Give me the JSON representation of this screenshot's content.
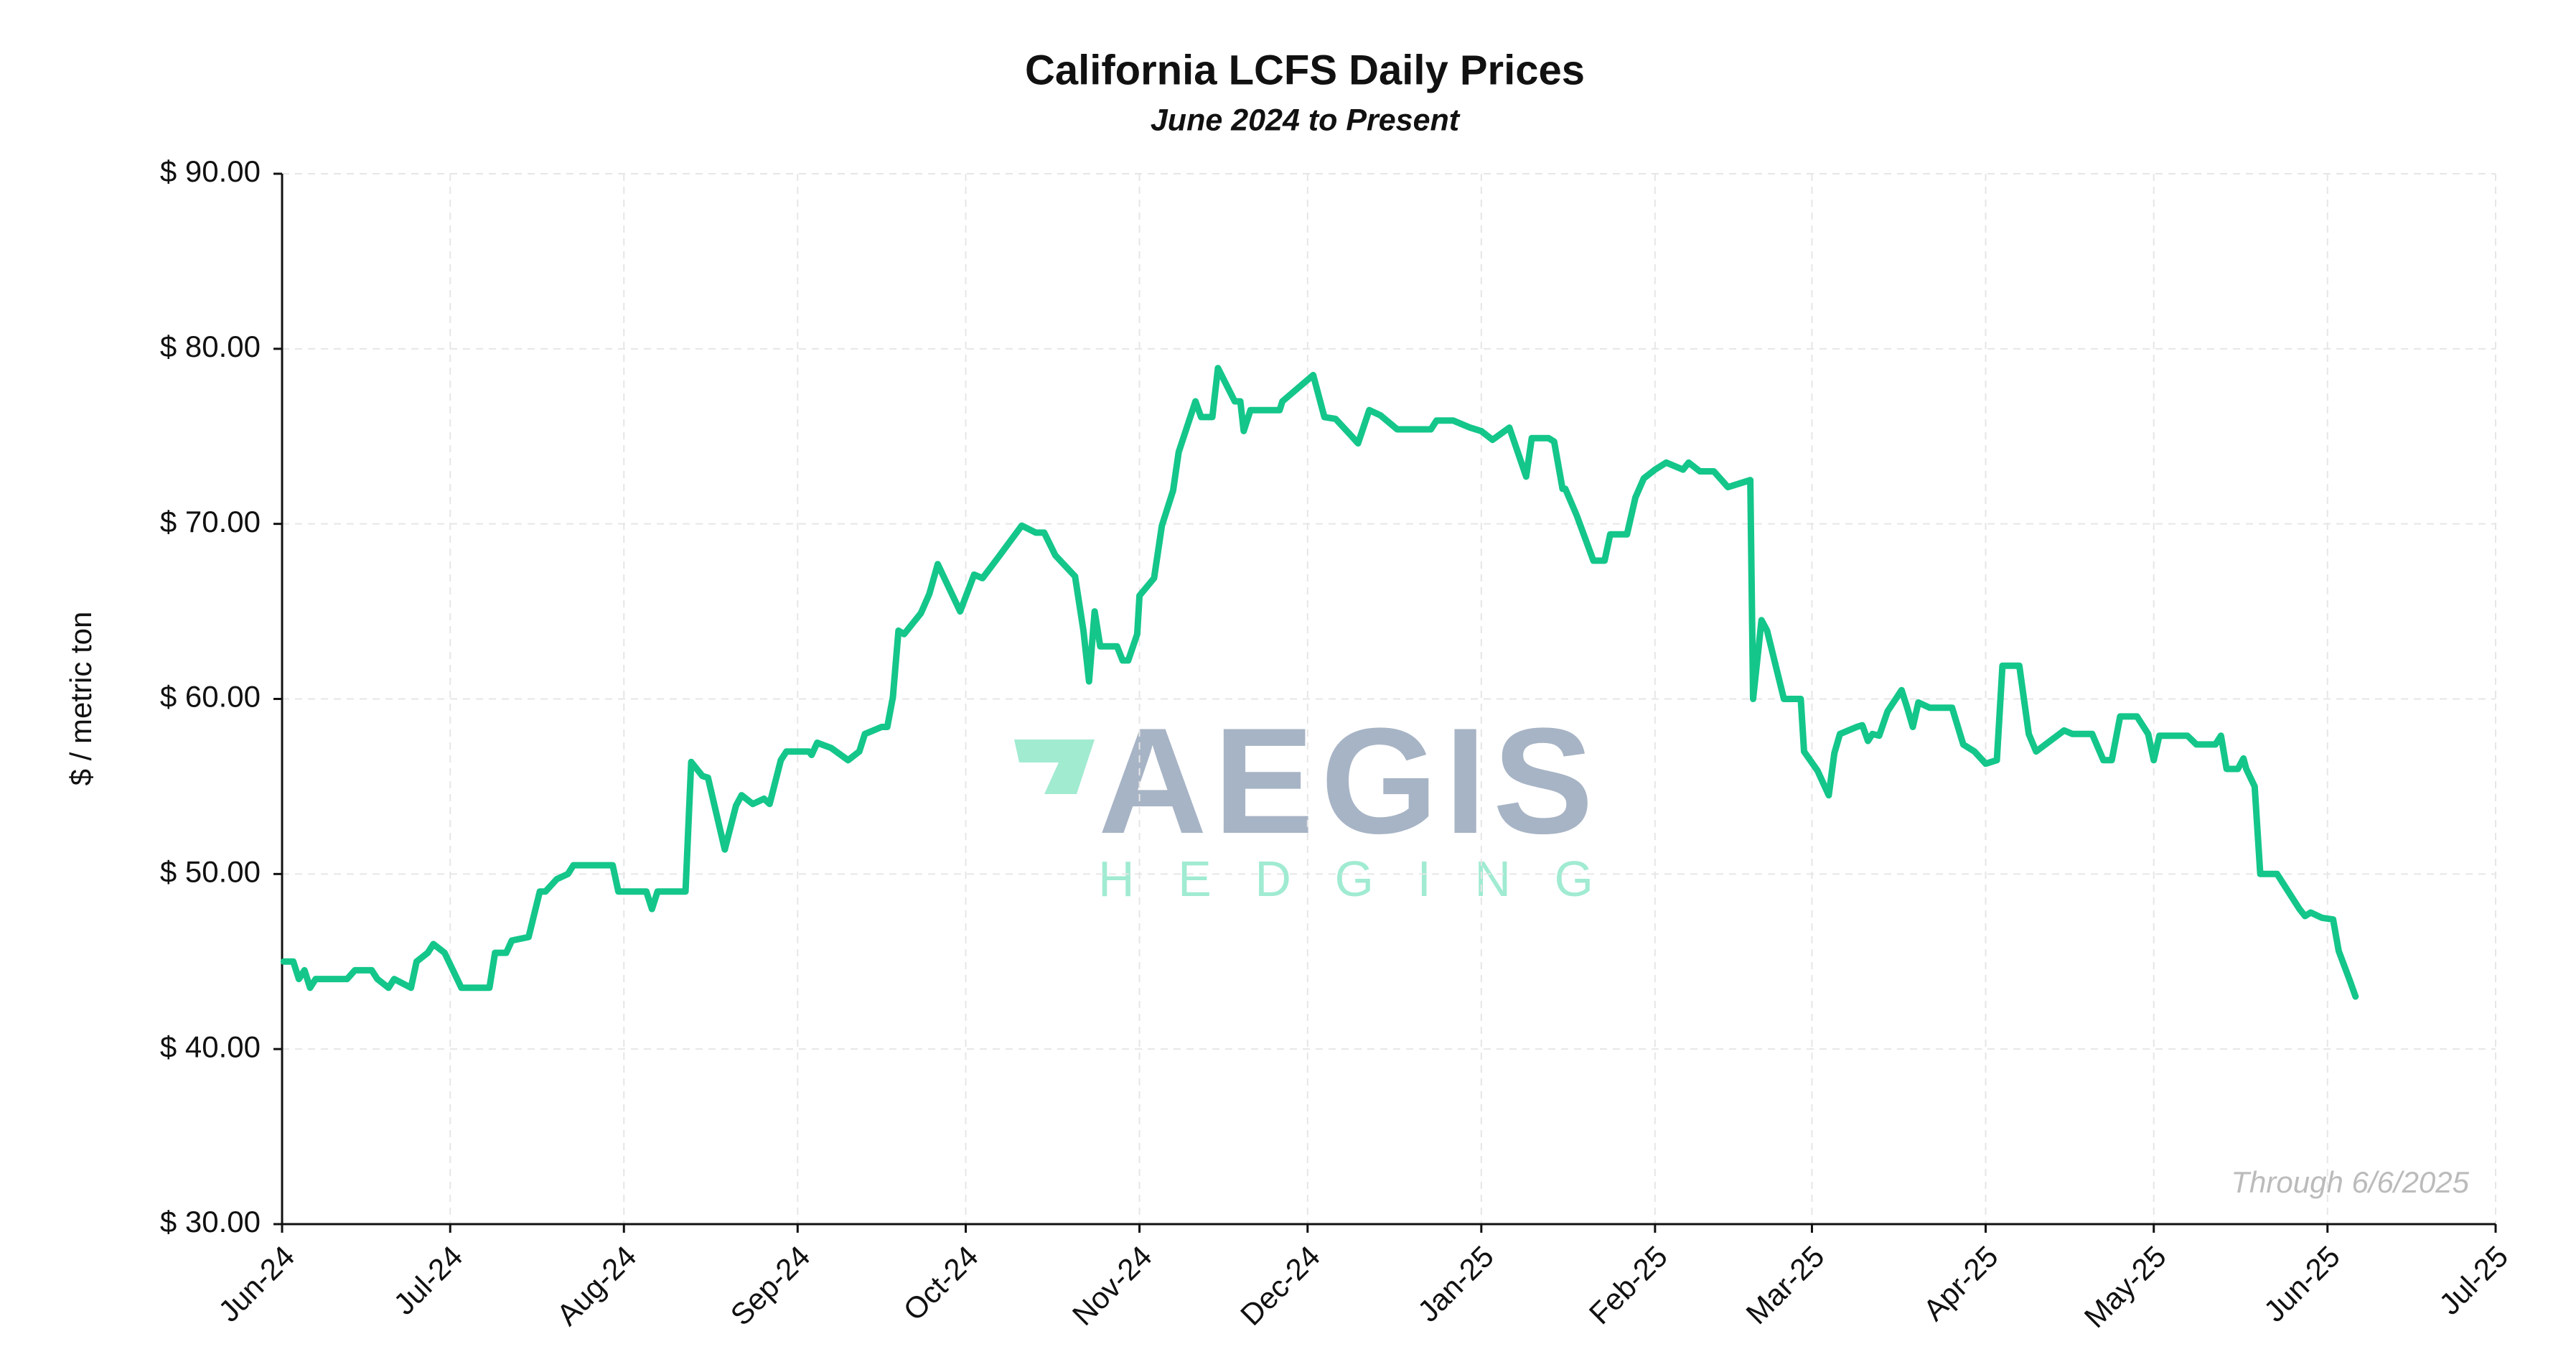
{
  "chart_data": {
    "type": "line",
    "title": "California LCFS Daily Prices",
    "subtitle": "June 2024 to Present",
    "ylabel": "$ / metric ton",
    "annotation": "Through 6/6/2025",
    "watermark": {
      "name": "AEGIS",
      "tagline": "HEDGING"
    },
    "grid": true,
    "xlim": [
      0,
      395
    ],
    "xticks": [
      {
        "value": 0,
        "label": "Jun-24"
      },
      {
        "value": 30,
        "label": "Jul-24"
      },
      {
        "value": 61,
        "label": "Aug-24"
      },
      {
        "value": 92,
        "label": "Sep-24"
      },
      {
        "value": 122,
        "label": "Oct-24"
      },
      {
        "value": 153,
        "label": "Nov-24"
      },
      {
        "value": 183,
        "label": "Dec-24"
      },
      {
        "value": 214,
        "label": "Jan-25"
      },
      {
        "value": 245,
        "label": "Feb-25"
      },
      {
        "value": 273,
        "label": "Mar-25"
      },
      {
        "value": 304,
        "label": "Apr-25"
      },
      {
        "value": 334,
        "label": "May-25"
      },
      {
        "value": 365,
        "label": "Jun-25"
      },
      {
        "value": 395,
        "label": "Jul-25"
      }
    ],
    "ylim": [
      30,
      90
    ],
    "yticks": [
      {
        "value": 30,
        "label": "$ 30.00"
      },
      {
        "value": 40,
        "label": "$ 40.00"
      },
      {
        "value": 50,
        "label": "$ 50.00"
      },
      {
        "value": 60,
        "label": "$ 60.00"
      },
      {
        "value": 70,
        "label": "$ 70.00"
      },
      {
        "value": 80,
        "label": "$ 80.00"
      },
      {
        "value": 90,
        "label": "$ 90.00"
      }
    ],
    "x": [
      0.3,
      2,
      3,
      4,
      5,
      6,
      11.6,
      13,
      16,
      17,
      19,
      20,
      23,
      24,
      26,
      27,
      29,
      32,
      37,
      38,
      40,
      41,
      44,
      46,
      47,
      49,
      51,
      52,
      59,
      60,
      65,
      66,
      67,
      72,
      73,
      75,
      76,
      79,
      81,
      82,
      84,
      86,
      87,
      89,
      90,
      94,
      94.5,
      95.5,
      98,
      101,
      103,
      104,
      107,
      108,
      109,
      110,
      111,
      114,
      115.5,
      117,
      121,
      123.5,
      125,
      127.6,
      132,
      134.5,
      136,
      138,
      141.5,
      143,
      144,
      145,
      146,
      149,
      150,
      151,
      152.6,
      153,
      155.6,
      157,
      159,
      160,
      163,
      164,
      166,
      167,
      170,
      171,
      171.6,
      172.8,
      178,
      178.5,
      184,
      186,
      188,
      190.6,
      192,
      194,
      196,
      199,
      205,
      206,
      209,
      212,
      214,
      216,
      219,
      222,
      223,
      226,
      227,
      228.5,
      229,
      231,
      234,
      236,
      237,
      240,
      241.5,
      243,
      245,
      247,
      250,
      251,
      253,
      255.5,
      258,
      262,
      262.5,
      264,
      265,
      268,
      271,
      271.6,
      274,
      276,
      277,
      278,
      281,
      282,
      283,
      283.8,
      285,
      286.5,
      289,
      290,
      291,
      292,
      294,
      298,
      300,
      302,
      304,
      306,
      307,
      310,
      311.7,
      313,
      318,
      319.5,
      323,
      325,
      326.5,
      328,
      331,
      333,
      334,
      335,
      340,
      341.6,
      345,
      346,
      347,
      349,
      350,
      350.5,
      352,
      353,
      356,
      360,
      361,
      362,
      364,
      366,
      367,
      369,
      370
    ],
    "series": [
      {
        "name": "LCFS Price",
        "color": "#14c68a",
        "values": [
          45,
          45,
          44,
          44.5,
          43.5,
          44,
          44,
          44.5,
          44.5,
          44,
          43.5,
          44,
          43.5,
          45,
          45.5,
          46,
          45.5,
          43.5,
          43.5,
          45.5,
          45.5,
          46.2,
          46.4,
          49,
          49,
          49.7,
          50,
          50.5,
          50.5,
          49,
          49,
          48,
          49,
          49,
          56.4,
          55.6,
          55.5,
          51.4,
          53.9,
          54.5,
          54,
          54.3,
          54,
          56.5,
          57,
          57,
          56.8,
          57.5,
          57.2,
          56.5,
          57,
          58,
          58.4,
          58.4,
          60.1,
          63.9,
          63.7,
          64.9,
          66,
          67.7,
          65,
          67.1,
          66.9,
          68,
          69.9,
          69.5,
          69.5,
          68.2,
          67,
          63.9,
          61,
          65,
          63,
          63,
          62.2,
          62.2,
          63.7,
          65.9,
          66.9,
          69.9,
          71.9,
          74.1,
          77,
          76.1,
          76.1,
          78.9,
          77,
          77,
          75.3,
          76.5,
          76.5,
          77,
          78.5,
          76.1,
          76,
          75.1,
          74.6,
          76.5,
          76.2,
          75.4,
          75.4,
          75.9,
          75.9,
          75.5,
          75.3,
          74.8,
          75.5,
          72.7,
          74.9,
          74.9,
          74.7,
          72,
          72,
          70.5,
          67.9,
          67.9,
          69.4,
          69.4,
          71.5,
          72.6,
          73.1,
          73.5,
          73.1,
          73.5,
          73,
          73,
          72.1,
          72.5,
          60,
          64.5,
          63.9,
          60,
          60,
          57,
          55.9,
          54.5,
          56.9,
          58,
          58.4,
          58.5,
          57.6,
          58,
          57.9,
          59.3,
          60.5,
          59.5,
          58.4,
          59.8,
          59.5,
          59.5,
          57.4,
          57,
          56.3,
          56.5,
          61.9,
          61.9,
          58,
          57,
          58.2,
          58,
          58,
          56.5,
          56.5,
          59,
          59,
          58,
          56.5,
          57.9,
          57.9,
          57.4,
          57.4,
          57.9,
          56,
          56,
          56.6,
          56,
          55,
          50,
          50,
          48,
          47.6,
          47.8,
          47.5,
          47.4,
          45.6,
          43.9,
          43
        ]
      }
    ]
  }
}
